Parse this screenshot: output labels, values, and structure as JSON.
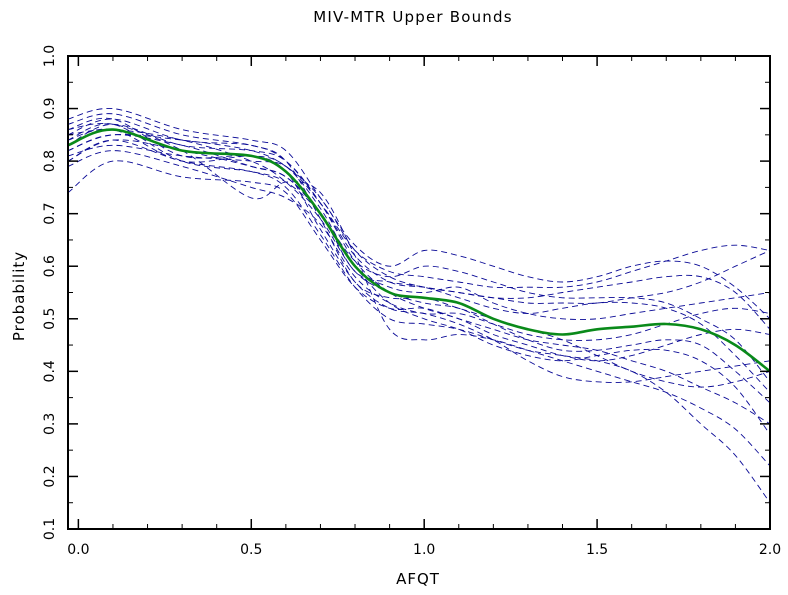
{
  "chart_data": {
    "type": "line",
    "title": "MIV-MTR Upper Bounds",
    "xlabel": "AFQT",
    "ylabel": "Probability",
    "xlim": [
      -0.03,
      2.0
    ],
    "ylim": [
      0.1,
      1.0
    ],
    "xticks": [
      0.0,
      0.5,
      1.0,
      1.5,
      2.0
    ],
    "xtick_labels": [
      "0.0",
      "0.5",
      "1.0",
      "1.5",
      "2.0"
    ],
    "yticks": [
      0.1,
      0.2,
      0.3,
      0.4,
      0.5,
      0.6,
      0.7,
      0.8,
      0.9,
      1.0
    ],
    "ytick_labels": [
      "0.1",
      "0.2",
      "0.3",
      "0.4",
      "0.5",
      "0.6",
      "0.7",
      "0.8",
      "0.9",
      "1.0"
    ],
    "grid": false,
    "colors": {
      "main": "#0a8a1a",
      "bootstrap": "#0a0a96",
      "axes": "#000000"
    },
    "x": [
      -0.03,
      0.1,
      0.3,
      0.5,
      0.6,
      0.7,
      0.8,
      0.9,
      1.0,
      1.1,
      1.2,
      1.3,
      1.4,
      1.5,
      1.6,
      1.7,
      1.8,
      1.9,
      2.0
    ],
    "series": [
      {
        "style": "solid",
        "values": [
          0.83,
          0.86,
          0.82,
          0.81,
          0.78,
          0.7,
          0.6,
          0.55,
          0.54,
          0.53,
          0.5,
          0.48,
          0.47,
          0.48,
          0.485,
          0.49,
          0.48,
          0.45,
          0.4
        ]
      },
      {
        "style": "dashed",
        "values": [
          0.85,
          0.88,
          0.84,
          0.83,
          0.8,
          0.72,
          0.62,
          0.57,
          0.56,
          0.55,
          0.54,
          0.53,
          0.53,
          0.53,
          0.54,
          0.55,
          0.57,
          0.6,
          0.63
        ]
      },
      {
        "style": "dashed",
        "values": [
          0.8,
          0.84,
          0.8,
          0.78,
          0.75,
          0.66,
          0.56,
          0.5,
          0.49,
          0.48,
          0.46,
          0.44,
          0.43,
          0.42,
          0.4,
          0.36,
          0.3,
          0.24,
          0.15
        ]
      },
      {
        "style": "dashed",
        "values": [
          0.88,
          0.9,
          0.86,
          0.84,
          0.82,
          0.73,
          0.64,
          0.6,
          0.63,
          0.62,
          0.6,
          0.58,
          0.57,
          0.58,
          0.6,
          0.61,
          0.6,
          0.56,
          0.5
        ]
      },
      {
        "style": "dashed",
        "values": [
          0.74,
          0.8,
          0.77,
          0.76,
          0.74,
          0.65,
          0.56,
          0.52,
          0.52,
          0.5,
          0.48,
          0.46,
          0.45,
          0.44,
          0.42,
          0.4,
          0.37,
          0.34,
          0.3
        ]
      },
      {
        "style": "dashed",
        "values": [
          0.86,
          0.87,
          0.82,
          0.73,
          0.76,
          0.74,
          0.62,
          0.48,
          0.46,
          0.47,
          0.46,
          0.44,
          0.42,
          0.4,
          0.38,
          0.36,
          0.33,
          0.29,
          0.22
        ]
      },
      {
        "style": "dashed",
        "values": [
          0.82,
          0.85,
          0.83,
          0.79,
          0.77,
          0.7,
          0.61,
          0.58,
          0.6,
          0.59,
          0.57,
          0.55,
          0.54,
          0.54,
          0.54,
          0.53,
          0.5,
          0.46,
          0.38
        ]
      },
      {
        "style": "dashed",
        "values": [
          0.84,
          0.86,
          0.8,
          0.81,
          0.79,
          0.71,
          0.6,
          0.56,
          0.55,
          0.56,
          0.53,
          0.51,
          0.5,
          0.5,
          0.51,
          0.52,
          0.53,
          0.54,
          0.55
        ]
      },
      {
        "style": "dashed",
        "values": [
          0.79,
          0.82,
          0.79,
          0.75,
          0.73,
          0.68,
          0.58,
          0.53,
          0.51,
          0.51,
          0.49,
          0.47,
          0.46,
          0.46,
          0.47,
          0.49,
          0.51,
          0.52,
          0.51
        ]
      },
      {
        "style": "dashed",
        "values": [
          0.87,
          0.89,
          0.85,
          0.83,
          0.8,
          0.69,
          0.57,
          0.54,
          0.54,
          0.52,
          0.5,
          0.48,
          0.46,
          0.43,
          0.4,
          0.38,
          0.37,
          0.38,
          0.4
        ]
      },
      {
        "style": "dashed",
        "values": [
          0.81,
          0.83,
          0.81,
          0.8,
          0.79,
          0.72,
          0.63,
          0.59,
          0.58,
          0.57,
          0.56,
          0.56,
          0.56,
          0.57,
          0.59,
          0.61,
          0.63,
          0.64,
          0.63
        ]
      },
      {
        "style": "dashed",
        "values": [
          0.85,
          0.86,
          0.84,
          0.8,
          0.76,
          0.69,
          0.59,
          0.55,
          0.53,
          0.52,
          0.49,
          0.46,
          0.44,
          0.44,
          0.45,
          0.46,
          0.45,
          0.4,
          0.34
        ]
      },
      {
        "style": "dashed",
        "values": [
          0.83,
          0.87,
          0.83,
          0.82,
          0.8,
          0.72,
          0.61,
          0.55,
          0.52,
          0.5,
          0.47,
          0.45,
          0.43,
          0.42,
          0.43,
          0.45,
          0.47,
          0.48,
          0.47
        ]
      },
      {
        "style": "dashed",
        "values": [
          0.8,
          0.84,
          0.82,
          0.79,
          0.77,
          0.7,
          0.59,
          0.57,
          0.56,
          0.54,
          0.52,
          0.51,
          0.52,
          0.53,
          0.53,
          0.52,
          0.49,
          0.43,
          0.36
        ]
      },
      {
        "style": "dashed",
        "values": [
          0.86,
          0.88,
          0.81,
          0.81,
          0.78,
          0.67,
          0.57,
          0.52,
          0.51,
          0.49,
          0.46,
          0.42,
          0.39,
          0.38,
          0.38,
          0.39,
          0.4,
          0.41,
          0.42
        ]
      },
      {
        "style": "dashed",
        "values": [
          0.82,
          0.85,
          0.84,
          0.82,
          0.79,
          0.73,
          0.63,
          0.58,
          0.56,
          0.55,
          0.54,
          0.54,
          0.55,
          0.56,
          0.57,
          0.58,
          0.58,
          0.55,
          0.48
        ]
      },
      {
        "style": "dashed",
        "values": [
          0.84,
          0.87,
          0.8,
          0.78,
          0.76,
          0.7,
          0.6,
          0.53,
          0.5,
          0.48,
          0.45,
          0.43,
          0.42,
          0.43,
          0.44,
          0.44,
          0.42,
          0.37,
          0.28
        ]
      }
    ]
  }
}
